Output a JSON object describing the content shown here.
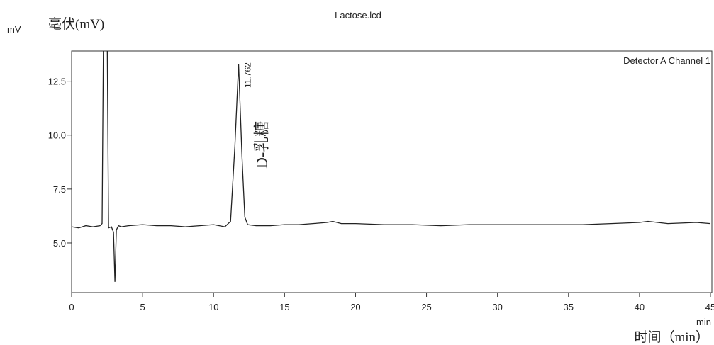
{
  "chart_data": {
    "type": "line",
    "title": "Lactose.lcd",
    "y_unit": "mV",
    "y_label": "毫伏(mV)",
    "x_unit": "min",
    "x_label": "时间（min）",
    "x": [
      0,
      0.5,
      1,
      1.5,
      2.0,
      2.15,
      2.25,
      2.5,
      2.6,
      2.8,
      2.95,
      3.05,
      3.15,
      3.3,
      3.5,
      4,
      5,
      6,
      7,
      8,
      9,
      10,
      10.8,
      11.2,
      11.5,
      11.762,
      12.0,
      12.2,
      12.4,
      13,
      14,
      15,
      16,
      17,
      18,
      18.4,
      19,
      20,
      22,
      24,
      26,
      28,
      30,
      32,
      34,
      36,
      38,
      40,
      40.6,
      42,
      44,
      45
    ],
    "series": [
      {
        "name": "Detector A Channel 1",
        "color": "#222222",
        "values": [
          5.75,
          5.7,
          5.8,
          5.75,
          5.8,
          5.9,
          15,
          15,
          5.7,
          5.75,
          5.5,
          3.2,
          5.6,
          5.8,
          5.75,
          5.8,
          5.85,
          5.8,
          5.8,
          5.75,
          5.8,
          5.85,
          5.75,
          6.0,
          9.5,
          13.3,
          9.0,
          6.2,
          5.85,
          5.8,
          5.8,
          5.85,
          5.85,
          5.9,
          5.95,
          6.0,
          5.9,
          5.9,
          5.85,
          5.85,
          5.8,
          5.85,
          5.85,
          5.85,
          5.85,
          5.85,
          5.9,
          5.95,
          6.0,
          5.9,
          5.95,
          5.9
        ]
      }
    ],
    "peaks": [
      {
        "time": 11.762,
        "label": "D-乳糖"
      }
    ],
    "xlim": [
      0,
      45.1
    ],
    "ylim": [
      2.7,
      13.9
    ],
    "xticks": [
      0,
      5,
      10,
      15,
      20,
      25,
      30,
      35,
      40,
      45
    ],
    "yticks": [
      {
        "value": 5,
        "label": "5.0"
      },
      {
        "value": 7.5,
        "label": "7.5"
      },
      {
        "value": 10,
        "label": "10.0"
      },
      {
        "value": 12.5,
        "label": "12.5"
      }
    ]
  }
}
